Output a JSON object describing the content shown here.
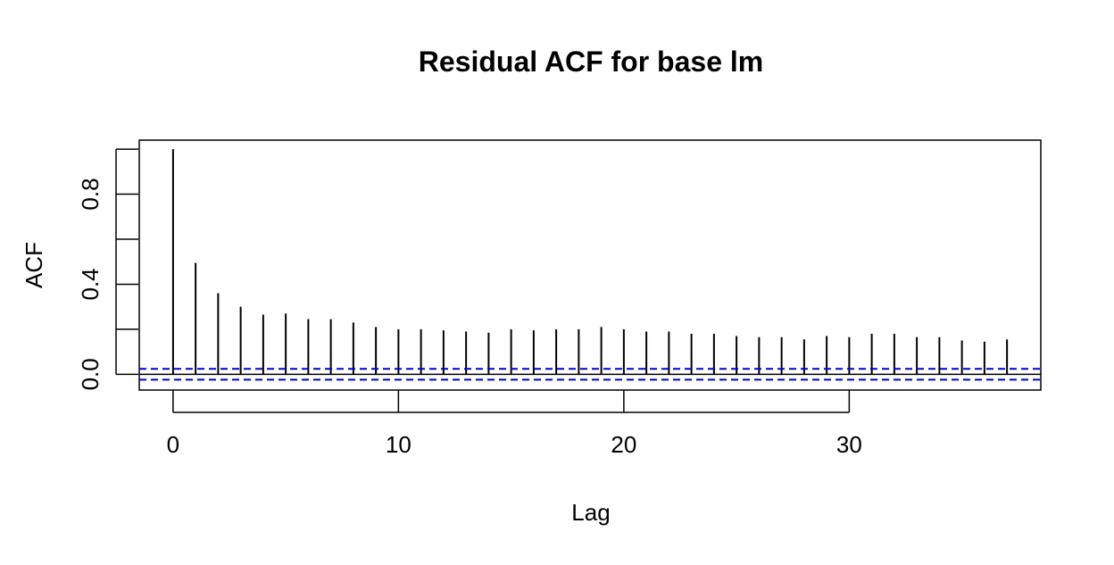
{
  "chart_data": {
    "type": "bar",
    "title": "Residual ACF for base lm",
    "xlabel": "Lag",
    "ylabel": "ACF",
    "x": [
      0,
      1,
      2,
      3,
      4,
      5,
      6,
      7,
      8,
      9,
      10,
      11,
      12,
      13,
      14,
      15,
      16,
      17,
      18,
      19,
      20,
      21,
      22,
      23,
      24,
      25,
      26,
      27,
      28,
      29,
      30,
      31,
      32,
      33,
      34,
      35,
      36,
      37
    ],
    "values": [
      1.0,
      0.495,
      0.36,
      0.3,
      0.265,
      0.27,
      0.245,
      0.245,
      0.23,
      0.21,
      0.2,
      0.2,
      0.195,
      0.19,
      0.185,
      0.2,
      0.195,
      0.2,
      0.2,
      0.21,
      0.2,
      0.19,
      0.19,
      0.18,
      0.18,
      0.17,
      0.165,
      0.165,
      0.155,
      0.17,
      0.165,
      0.18,
      0.18,
      0.165,
      0.165,
      0.15,
      0.145,
      0.155
    ],
    "xlim": [
      -1.5,
      38.5
    ],
    "ylim": [
      -0.07,
      1.04
    ],
    "x_ticks": [
      0,
      10,
      20,
      30
    ],
    "x_tick_labels": [
      "0",
      "10",
      "20",
      "30"
    ],
    "y_ticks": [
      0.0,
      0.2,
      0.4,
      0.6,
      0.8,
      1.0
    ],
    "y_tick_labels": [
      "0.0",
      "",
      "0.4",
      "",
      "0.8",
      ""
    ],
    "confidence_bound": 0.024,
    "confidence_color": "#0000cc",
    "bar_color": "#000000",
    "zero_line": true,
    "grid": false,
    "legend": "none"
  }
}
